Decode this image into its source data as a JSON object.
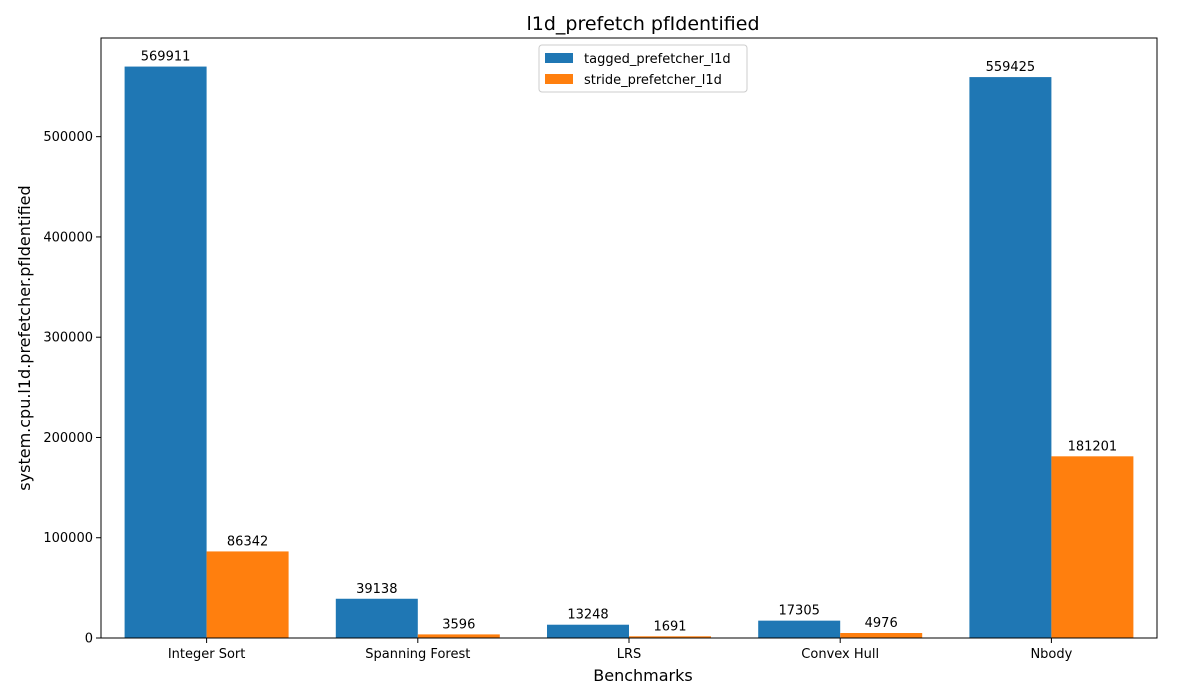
{
  "chart_data": {
    "type": "bar",
    "title": "l1d_prefetch pfIdentified",
    "xlabel": "Benchmarks",
    "ylabel": "system.cpu.l1d.prefetcher.pfIdentified",
    "categories": [
      "Integer Sort",
      "Spanning Forest",
      "LRS",
      "Convex Hull",
      "Nbody"
    ],
    "series": [
      {
        "name": "tagged_prefetcher_l1d",
        "color": "#1f77b4",
        "values": [
          569911,
          39138,
          13248,
          17305,
          559425
        ]
      },
      {
        "name": "stride_prefetcher_l1d",
        "color": "#ff7f0e",
        "values": [
          86342,
          3596,
          1691,
          4976,
          181201
        ]
      }
    ],
    "ylim": [
      0,
      598407
    ],
    "yticks": [
      0,
      100000,
      200000,
      300000,
      400000,
      500000
    ],
    "legend_position": "top-center",
    "grid": false,
    "data_labels": true
  }
}
